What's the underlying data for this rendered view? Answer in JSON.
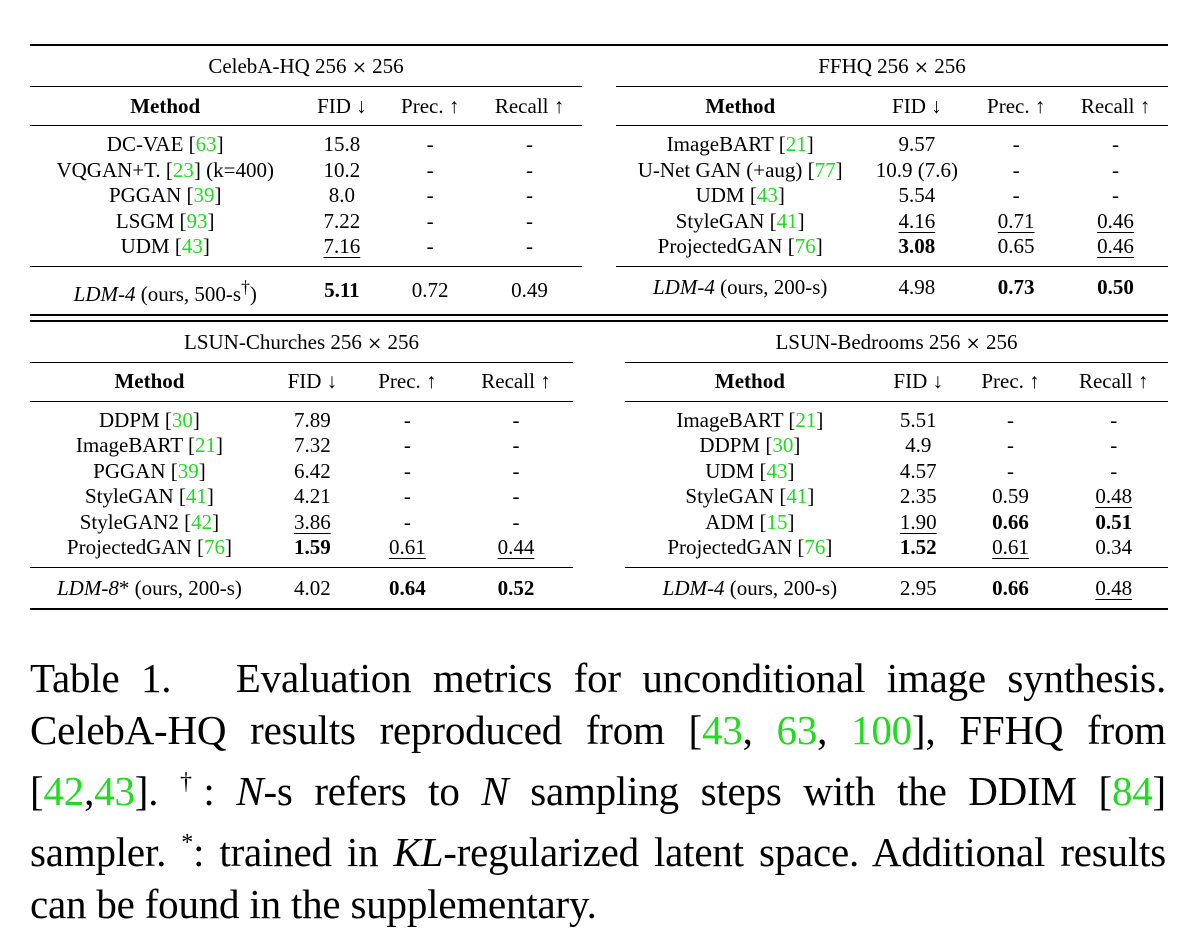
{
  "table": {
    "celeba": {
      "title_prefix": "CelebA-HQ 256 ",
      "title_times": "×",
      "title_suffix": " 256",
      "headers": [
        "Method",
        "FID ↓",
        "Prec. ↑",
        "Recall ↑"
      ],
      "rows": [
        {
          "name": "DC-VAE ",
          "ref": "63",
          "post": "",
          "fid": "15.8",
          "prec": "-",
          "recall": "-"
        },
        {
          "name": "VQGAN+T. ",
          "ref": "23",
          "post": " (k=400)",
          "fid": "10.2",
          "prec": "-",
          "recall": "-"
        },
        {
          "name": "PGGAN ",
          "ref": "39",
          "post": "",
          "fid": "8.0",
          "prec": "-",
          "recall": "-"
        },
        {
          "name": "LSGM ",
          "ref": "93",
          "post": "",
          "fid": "7.22",
          "prec": "-",
          "recall": "-"
        },
        {
          "name": "UDM ",
          "ref": "43",
          "post": "",
          "fid": "7.16",
          "prec": "-",
          "recall": "-"
        }
      ],
      "ours": {
        "name": "LDM-4",
        "rest": " (ours, 500-s",
        "sup": "†",
        "close": ")",
        "fid": "5.11",
        "prec": "0.72",
        "recall": "0.49"
      }
    },
    "ffhq": {
      "title_prefix": "FFHQ 256 ",
      "title_times": "×",
      "title_suffix": " 256",
      "headers": [
        "Method",
        "FID ↓",
        "Prec. ↑",
        "Recall ↑"
      ],
      "rows": [
        {
          "name": "ImageBART ",
          "ref": "21",
          "post": "",
          "fid": "9.57",
          "prec": "-",
          "recall": "-"
        },
        {
          "name": "U-Net GAN (+aug) ",
          "ref": "77",
          "post": "",
          "fid": "10.9 (7.6)",
          "prec": "-",
          "recall": "-"
        },
        {
          "name": "UDM ",
          "ref": "43",
          "post": "",
          "fid": "5.54",
          "prec": "-",
          "recall": "-"
        },
        {
          "name": "StyleGAN ",
          "ref": "41",
          "post": "",
          "fid": "4.16",
          "prec": "0.71",
          "recall": "0.46"
        },
        {
          "name": "ProjectedGAN ",
          "ref": "76",
          "post": "",
          "fid": "3.08",
          "prec": "0.65",
          "recall": "0.46"
        }
      ],
      "ours": {
        "name": "LDM-4",
        "rest": " (ours, 200-s)",
        "sup": "",
        "close": "",
        "fid": "4.98",
        "prec": "0.73",
        "recall": "0.50"
      }
    },
    "churches": {
      "title_prefix": "LSUN-Churches 256 ",
      "title_times": "×",
      "title_suffix": " 256",
      "headers": [
        "Method",
        "FID ↓",
        "Prec. ↑",
        "Recall ↑"
      ],
      "rows": [
        {
          "name": "DDPM ",
          "ref": "30",
          "post": "",
          "fid": "7.89",
          "prec": "-",
          "recall": "-"
        },
        {
          "name": "ImageBART ",
          "ref": "21",
          "post": "",
          "fid": "7.32",
          "prec": "-",
          "recall": "-"
        },
        {
          "name": "PGGAN ",
          "ref": "39",
          "post": "",
          "fid": "6.42",
          "prec": "-",
          "recall": "-"
        },
        {
          "name": "StyleGAN ",
          "ref": "41",
          "post": "",
          "fid": "4.21",
          "prec": "-",
          "recall": "-"
        },
        {
          "name": "StyleGAN2 ",
          "ref": "42",
          "post": "",
          "fid": "3.86",
          "prec": "-",
          "recall": "-"
        },
        {
          "name": "ProjectedGAN ",
          "ref": "76",
          "post": "",
          "fid": "1.59",
          "prec": "0.61",
          "recall": "0.44"
        }
      ],
      "ours": {
        "name": "LDM-8",
        "rest": "* (ours, 200-s)",
        "sup": "",
        "close": "",
        "fid": "4.02",
        "prec": "0.64",
        "recall": "0.52"
      }
    },
    "bedrooms": {
      "title_prefix": "LSUN-Bedrooms 256 ",
      "title_times": "×",
      "title_suffix": " 256",
      "headers": [
        "Method",
        "FID ↓",
        "Prec. ↑",
        "Recall ↑"
      ],
      "rows": [
        {
          "name": "ImageBART ",
          "ref": "21",
          "post": "",
          "fid": "5.51",
          "prec": "-",
          "recall": "-"
        },
        {
          "name": "DDPM ",
          "ref": "30",
          "post": "",
          "fid": "4.9",
          "prec": "-",
          "recall": "-"
        },
        {
          "name": "UDM ",
          "ref": "43",
          "post": "",
          "fid": "4.57",
          "prec": "-",
          "recall": "-"
        },
        {
          "name": "StyleGAN ",
          "ref": "41",
          "post": "",
          "fid": "2.35",
          "prec": "0.59",
          "recall": "0.48"
        },
        {
          "name": "ADM ",
          "ref": "15",
          "post": "",
          "fid": "1.90",
          "prec": "0.66",
          "recall": "0.51"
        },
        {
          "name": "ProjectedGAN ",
          "ref": "76",
          "post": "",
          "fid": "1.52",
          "prec": "0.61",
          "recall": "0.34"
        }
      ],
      "ours": {
        "name": "LDM-4",
        "rest": " (ours, 200-s)",
        "sup": "",
        "close": "",
        "fid": "2.95",
        "prec": "0.66",
        "recall": "0.48"
      }
    }
  },
  "caption": {
    "label": "Table 1.",
    "t1": "Evaluation metrics for unconditional image synthesis. CelebA-HQ results reproduced from [",
    "r1": "43",
    "c1": ", ",
    "r2": "63",
    "c2": ", ",
    "r3": "100",
    "t2": "], FFHQ from [",
    "r4": "42",
    "c3": ",",
    "r5": "43",
    "t3": "]. ",
    "dagger": "†",
    "t4": ": ",
    "n1": "N",
    "t5": "-s refers to ",
    "n2": "N",
    "t6": " sampling steps with the DDIM [",
    "r6": "84",
    "t7": "] sampler. ",
    "star": "*",
    "t8": ": trained in ",
    "kl": "KL",
    "t9": "-regularized latent space. Additional results can be found in the supplementary."
  }
}
